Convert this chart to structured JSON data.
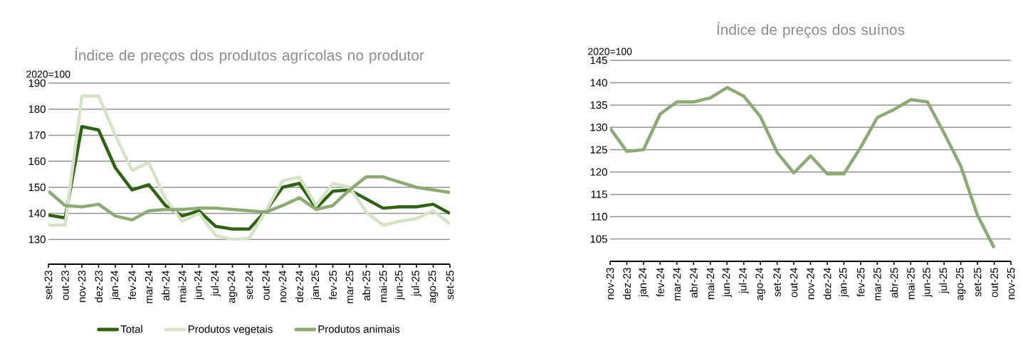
{
  "chart_data": [
    {
      "type": "line",
      "title": "Índice de preços dos produtos agrícolas no produtor",
      "ylabel": "2020=100",
      "categories": [
        "set-23",
        "out-23",
        "nov-23",
        "dez-23",
        "jan-24",
        "fev-24",
        "mar-24",
        "abr-24",
        "mai-24",
        "jun-24",
        "jul-24",
        "ago-24",
        "set-24",
        "out-24",
        "nov-24",
        "dez-24",
        "jan-25",
        "fev-25",
        "mar-25",
        "abr-25",
        "mai-25",
        "jun-25",
        "jul-25",
        "ago-25",
        "set-25"
      ],
      "series": [
        {
          "name": "Total",
          "color": "#2e6411",
          "values": [
            139.3,
            138.3,
            173.3,
            172,
            157.5,
            149,
            151,
            143,
            139,
            141,
            135,
            134,
            134,
            141,
            150,
            151.5,
            142,
            148.5,
            149,
            145.5,
            142,
            142.5,
            142.5,
            143.5,
            140
          ]
        },
        {
          "name": "Produtos vegetais",
          "color": "#d5e3c7",
          "values": [
            135.5,
            135.5,
            185,
            185,
            170,
            156.5,
            159.5,
            145.5,
            137,
            140,
            131.5,
            130,
            130.5,
            141,
            152.5,
            154,
            143,
            151.5,
            150,
            140.5,
            135.5,
            137,
            138,
            141,
            136
          ]
        },
        {
          "name": "Produtos animais",
          "color": "#8bab72",
          "values": [
            148.5,
            143,
            142.5,
            143.5,
            139,
            137.5,
            141,
            141.5,
            141.5,
            142,
            142,
            141.5,
            141,
            140.5,
            143,
            146,
            141.5,
            143,
            149,
            154,
            154,
            152,
            150,
            149,
            148
          ]
        }
      ],
      "ylim": [
        120.5,
        190
      ],
      "yticks": [
        130,
        140,
        150,
        160,
        170,
        180,
        190
      ],
      "grid": "y",
      "legend": "bottom",
      "marker": "none",
      "line_style": "solid"
    },
    {
      "type": "line",
      "title": "Índice de preços dos suínos",
      "ylabel": "2020=100",
      "categories": [
        "nov-23",
        "dez-23",
        "jan-24",
        "fev-24",
        "mar-24",
        "abr-24",
        "mai-24",
        "jun-24",
        "jul-24",
        "ago-24",
        "set-24",
        "out-24",
        "nov-24",
        "dez-24",
        "jan-25",
        "fev-25",
        "mar-25",
        "abr-25",
        "mai-25",
        "jun-25",
        "jul-25",
        "ago-25",
        "set-25",
        "out-25",
        "nov-25"
      ],
      "series": [
        {
          "color": "#8bab72",
          "values": [
            129.8,
            124.6,
            125,
            133,
            135.7,
            135.7,
            136.6,
            138.9,
            137,
            132.4,
            124.4,
            119.8,
            123.6,
            119.6,
            119.6,
            125.5,
            132.2,
            134,
            136.2,
            135.7,
            128.7,
            121.3,
            110.3,
            103,
            null
          ]
        }
      ],
      "ylim": [
        100,
        145
      ],
      "yticks": [
        105,
        110,
        115,
        120,
        125,
        130,
        135,
        140,
        145
      ],
      "grid": "y",
      "legend": false,
      "marker": "none",
      "line_style": "solid"
    }
  ]
}
